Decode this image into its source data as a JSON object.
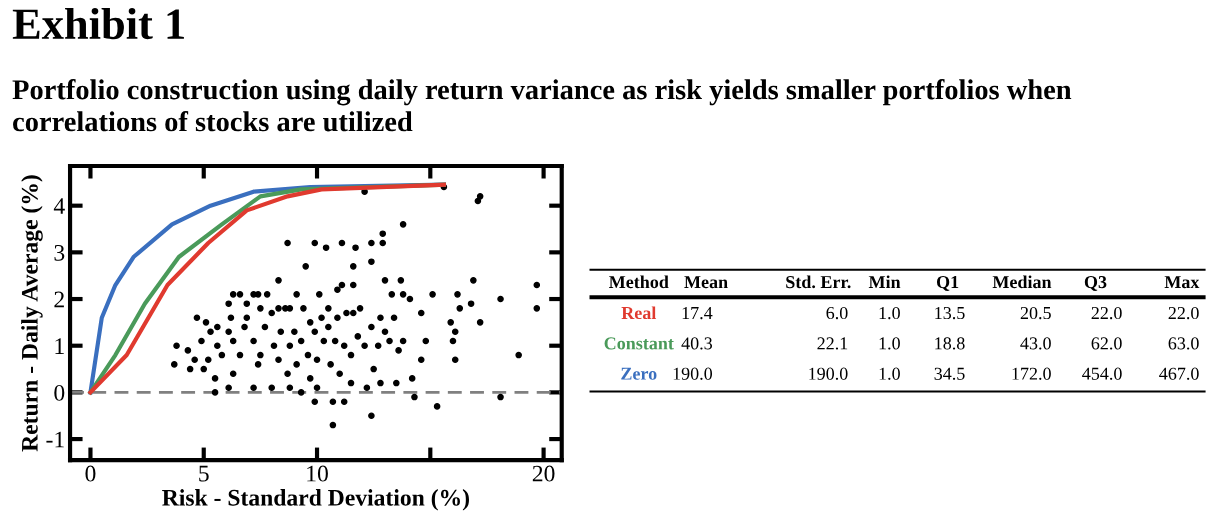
{
  "chart_data": [
    {
      "type": "line",
      "title": "Exhibit 1",
      "subtitle": "Portfolio construction using daily return variance as risk yields smaller portfolios when correlations of stocks are utilized",
      "xlabel": "Risk - Standard Deviation (%)",
      "ylabel": "Return - Daily Average (%)",
      "xlim": [
        -0.9,
        20.8
      ],
      "ylim": [
        -1.45,
        4.85
      ],
      "xticks": [
        0,
        5,
        10,
        {
          "value": 15,
          "label": null
        },
        20
      ],
      "yticks": [
        -1,
        0,
        1,
        2,
        3,
        4
      ],
      "grid": false,
      "legend": false,
      "marker": "none",
      "line_style": "solid",
      "ref_lines": [
        {
          "axis": "y",
          "value": 0,
          "label": null,
          "color": "#808080",
          "line_style": "dashed"
        }
      ],
      "series": [
        {
          "type": "scatter",
          "color": "#000000",
          "marker": "circle",
          "x": [
            15.6,
            12.1,
            17.1,
            17.2,
            13.8,
            12.9,
            12.9,
            8.7,
            9.9,
            10.4,
            11.1,
            11.7,
            12.4,
            12.4,
            11.6,
            9.5,
            8.3,
            11.1,
            10.9,
            11.6,
            13.0,
            13.7,
            15.1,
            16.2,
            16.9,
            18.1,
            19.7,
            19.7,
            17.2,
            16.8,
            16.3,
            15.9,
            16.1,
            16.0,
            16.1,
            18.9,
            18.1,
            15.3,
            14.3,
            14.2,
            14.6,
            14.8,
            14.6,
            14.1,
            13.8,
            13.3,
            12.4,
            10.7,
            11.2,
            10.7,
            9.9,
            9.1,
            10.1,
            12.2,
            12.8,
            13.5,
            11.5,
            3.7,
            5.5,
            6.1,
            3.8,
            4.7,
            5.1,
            6.3,
            6.6,
            7.2,
            7.4,
            7.8,
            6.1,
            4.3,
            4.6,
            4.4,
            5.0,
            5.5,
            4.9,
            5.3,
            5.6,
            5.8,
            6.1,
            6.3,
            6.3,
            6.6,
            6.8,
            6.9,
            7.2,
            7.4,
            7.5,
            7.7,
            8.0,
            8.1,
            8.3,
            8.4,
            8.6,
            8.7,
            8.8,
            9.0,
            9.1,
            9.3,
            9.4,
            9.6,
            9.7,
            9.9,
            10.0,
            10.2,
            10.3,
            10.5,
            10.6,
            10.8,
            10.9,
            11.0,
            11.2,
            11.3,
            11.5,
            11.8,
            11.9,
            12.1,
            12.4,
            12.5,
            12.7,
            12.8,
            13.0,
            13.2,
            13.4,
            13.6,
            13.8,
            8.8,
            9.3,
            10.0,
            7.2,
            8.0,
            5.2,
            5.6,
            6.2,
            6.9,
            7.5,
            8.3,
            8.8,
            9.7,
            10.5,
            11.6
          ],
          "values": [
            4.4,
            4.3,
            4.1,
            4.2,
            3.6,
            3.4,
            3.2,
            3.2,
            3.2,
            3.1,
            3.2,
            3.1,
            3.2,
            2.8,
            2.7,
            2.7,
            2.4,
            2.3,
            2.2,
            2.3,
            2.4,
            2.4,
            2.1,
            2.1,
            2.4,
            2.0,
            2.3,
            1.8,
            1.5,
            1.9,
            1.8,
            1.5,
            1.3,
            1.1,
            0.7,
            0.8,
            -0.1,
            -0.3,
            -0.1,
            0.3,
            0.7,
            1.1,
            1.7,
            2.0,
            2.1,
            2.1,
            -0.5,
            -0.7,
            -0.2,
            -0.2,
            -0.2,
            2.1,
            2.1,
            0.1,
            0.2,
            0.2,
            0.2,
            0.6,
            0.0,
            0.1,
            1.0,
            1.6,
            1.5,
            2.1,
            2.1,
            2.1,
            2.1,
            2.1,
            1.9,
            0.9,
            0.7,
            0.5,
            0.5,
            0.3,
            1.1,
            1.3,
            1.0,
            0.8,
            1.3,
            1.1,
            0.4,
            0.8,
            1.4,
            1.6,
            1.1,
            0.6,
            0.8,
            1.4,
            1.7,
            1.0,
            0.7,
            1.3,
            1.8,
            0.4,
            1.0,
            1.3,
            0.6,
            1.1,
            1.8,
            0.8,
            0.3,
            1.3,
            0.7,
            1.6,
            1.1,
            1.4,
            0.6,
            1.1,
            1.6,
            0.4,
            1.0,
            1.7,
            0.8,
            1.2,
            1.8,
            1.0,
            1.4,
            0.5,
            1.0,
            1.6,
            1.3,
            1.1,
            1.6,
            0.9,
            1.1,
            0.1,
            0.0,
            0.1,
            0.1,
            0.1,
            0.7,
            1.4,
            1.6,
            1.9,
            1.8,
            1.8,
            1.8,
            1.5,
            1.8,
            1.7
          ]
        },
        {
          "color": "#3a6fbf",
          "x": [
            0,
            0.5,
            1.1,
            1.9,
            3.6,
            5.3,
            7.2,
            9.7,
            15.6
          ],
          "values": [
            0,
            1.6,
            2.3,
            2.9,
            3.6,
            4.0,
            4.3,
            4.4,
            4.45
          ]
        },
        {
          "color": "#4a9a5a",
          "x": [
            0,
            1.1,
            2.4,
            3.9,
            5.8,
            7.5,
            9.3,
            15.6
          ],
          "values": [
            0,
            0.8,
            1.9,
            2.9,
            3.6,
            4.2,
            4.35,
            4.45
          ]
        },
        {
          "color": "#e03a2f",
          "x": [
            0,
            1.6,
            3.4,
            5.2,
            6.9,
            8.7,
            10.2,
            15.6
          ],
          "values": [
            0,
            0.8,
            2.3,
            3.2,
            3.9,
            4.2,
            4.35,
            4.45
          ]
        }
      ]
    },
    {
      "type": "other",
      "categories": [
        "Method",
        "Mean",
        "Std. Err.",
        "Min",
        "Q1",
        "Median",
        "Q3",
        "Max"
      ],
      "y_categories": [
        "Real",
        "Constant",
        "Zero"
      ],
      "colors": [
        "#e03a2f",
        "#4a9a5a",
        "#3a6fbf"
      ],
      "cell_labels": [
        [
          "17.4",
          "6.0",
          "1.0",
          "13.5",
          "20.5",
          "22.0",
          "22.0"
        ],
        [
          "40.3",
          "22.1",
          "1.0",
          "18.8",
          "43.0",
          "62.0",
          "63.0"
        ],
        [
          "190.0",
          "190.0",
          "1.0",
          "34.5",
          "172.0",
          "454.0",
          "467.0"
        ]
      ]
    }
  ]
}
